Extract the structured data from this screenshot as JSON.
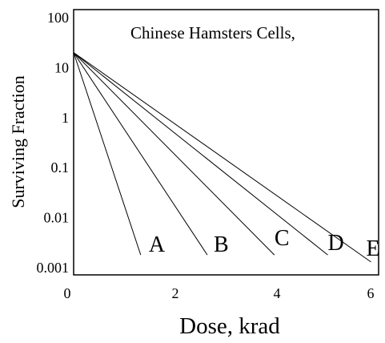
{
  "chart_data": {
    "type": "line",
    "title": "",
    "annotation": "Chinese Hamsters Cells,",
    "xlabel": "Dose, krad",
    "ylabel": "Surviving Fraction",
    "xlim": [
      0,
      6
    ],
    "ylim": [
      0.001,
      100
    ],
    "y_scale": "log",
    "grid": false,
    "x_ticks": [
      {
        "value": 0,
        "label": "0"
      },
      {
        "value": 2,
        "label": "2"
      },
      {
        "value": 4,
        "label": "4"
      },
      {
        "value": 6,
        "label": "6"
      }
    ],
    "y_ticks": [
      {
        "value": 100,
        "label": "100"
      },
      {
        "value": 10,
        "label": "10"
      },
      {
        "value": 1,
        "label": "1"
      },
      {
        "value": 0.1,
        "label": "0.1"
      },
      {
        "value": 0.01,
        "label": "0.01"
      },
      {
        "value": 0.001,
        "label": "0.001"
      }
    ],
    "series": [
      {
        "name": "A",
        "x": [
          0,
          1.32
        ],
        "y": [
          20,
          0.0018
        ]
      },
      {
        "name": "B",
        "x": [
          0,
          2.63
        ],
        "y": [
          20,
          0.0018
        ]
      },
      {
        "name": "C",
        "x": [
          0,
          3.95
        ],
        "y": [
          20,
          0.0018
        ]
      },
      {
        "name": "D",
        "x": [
          0,
          5.0
        ],
        "y": [
          20,
          0.0018
        ]
      },
      {
        "name": "E",
        "x": [
          0,
          5.85
        ],
        "y": [
          20,
          0.0013
        ]
      }
    ]
  }
}
